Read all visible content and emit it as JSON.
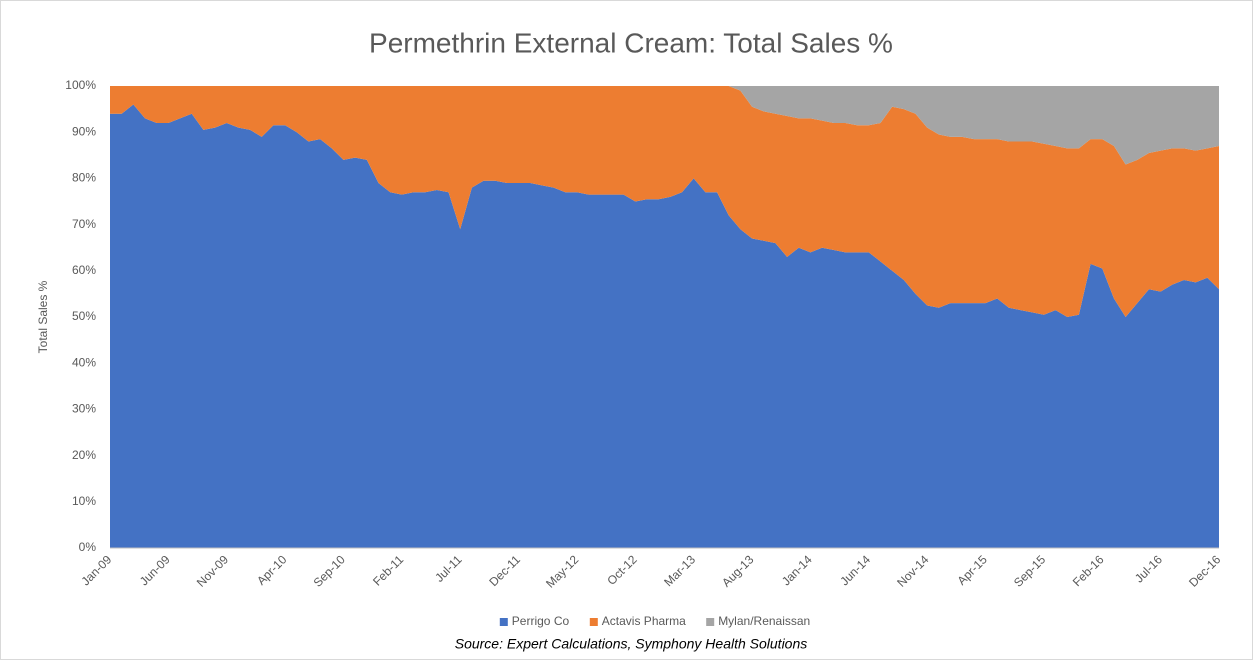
{
  "chart_data": {
    "type": "stacked_area",
    "title": "Permethrin External Cream: Total Sales %",
    "ylabel": "Total Sales %",
    "source": "Source: Expert Calculations, Symphony Health Solutions",
    "legend": "bottom",
    "grid": false,
    "ylim": [
      0,
      100
    ],
    "yticks": [
      {
        "value": 0,
        "label": "0%"
      },
      {
        "value": 10,
        "label": "10%"
      },
      {
        "value": 20,
        "label": "20%"
      },
      {
        "value": 30,
        "label": "30%"
      },
      {
        "value": 40,
        "label": "40%"
      },
      {
        "value": 50,
        "label": "50%"
      },
      {
        "value": 60,
        "label": "60%"
      },
      {
        "value": 70,
        "label": "70%"
      },
      {
        "value": 80,
        "label": "80%"
      },
      {
        "value": 90,
        "label": "90%"
      },
      {
        "value": 100,
        "label": "100%"
      }
    ],
    "categories": [
      "Jan-09",
      null,
      null,
      null,
      null,
      "Jun-09",
      null,
      null,
      null,
      null,
      "Nov-09",
      null,
      null,
      null,
      null,
      "Apr-10",
      null,
      null,
      null,
      null,
      "Sep-10",
      null,
      null,
      null,
      null,
      "Feb-11",
      null,
      null,
      null,
      null,
      "Jul-11",
      null,
      null,
      null,
      null,
      "Dec-11",
      null,
      null,
      null,
      null,
      "May-12",
      null,
      null,
      null,
      null,
      "Oct-12",
      null,
      null,
      null,
      null,
      "Mar-13",
      null,
      null,
      null,
      null,
      "Aug-13",
      null,
      null,
      null,
      null,
      "Jan-14",
      null,
      null,
      null,
      null,
      "Jun-14",
      null,
      null,
      null,
      null,
      "Nov-14",
      null,
      null,
      null,
      null,
      "Apr-15",
      null,
      null,
      null,
      null,
      "Sep-15",
      null,
      null,
      null,
      null,
      "Feb-16",
      null,
      null,
      null,
      null,
      "Jul-16",
      null,
      null,
      null,
      null,
      "Dec-16"
    ],
    "series": [
      {
        "name": "Perrigo Co",
        "color": "#4472c4",
        "values": [
          94,
          94,
          96,
          93,
          92,
          92,
          93,
          94,
          90.5,
          91,
          92,
          91,
          90.5,
          89,
          91.5,
          91.5,
          90,
          88,
          88.5,
          86.5,
          84,
          84.5,
          84,
          79,
          77,
          76.5,
          77,
          77,
          77.5,
          77,
          69,
          78,
          79.5,
          79.5,
          79,
          79,
          79,
          78.5,
          78,
          77,
          77,
          76.5,
          76.5,
          76.5,
          76.5,
          75,
          75.5,
          75.5,
          76,
          77,
          80,
          77,
          77,
          72,
          69,
          67,
          66.5,
          66,
          63,
          65,
          64,
          65,
          64.5,
          64,
          64,
          64,
          62,
          60,
          58,
          55,
          52.5,
          52,
          53,
          53,
          53,
          53,
          54,
          52,
          51.5,
          51,
          50.5,
          51.5,
          50,
          50.5,
          61.5,
          60.5,
          54,
          50,
          53,
          56,
          55.5,
          57,
          58,
          57.5,
          58.5,
          56
        ]
      },
      {
        "name": "Actavis Pharma",
        "color": "#ed7d31",
        "values": [
          6,
          6,
          4,
          7,
          8,
          8,
          7,
          6,
          9.5,
          9,
          8,
          9,
          9.5,
          11,
          8.5,
          8.5,
          10,
          12,
          11.5,
          13.5,
          16,
          15.5,
          16,
          21,
          23,
          23.5,
          23,
          23,
          22.5,
          23,
          31,
          22,
          20.5,
          20.5,
          21,
          21,
          21,
          21.5,
          22,
          23,
          23,
          23.5,
          23.5,
          23.5,
          23.5,
          25,
          24.5,
          24.5,
          24,
          23,
          20,
          23,
          23,
          28,
          30,
          28.5,
          28,
          28,
          30.5,
          28,
          29,
          27.5,
          27.5,
          28,
          27.5,
          27.5,
          30,
          35.5,
          37,
          39,
          38.5,
          37.5,
          36,
          36,
          35.5,
          35.5,
          34.5,
          36,
          36.5,
          37,
          37,
          35.5,
          36.5,
          36,
          27,
          28,
          33,
          33,
          31,
          29.5,
          30.5,
          29.5,
          28.5,
          28.5,
          28,
          31
        ]
      },
      {
        "name": "Mylan/Renaissan",
        "color": "#a5a5a5",
        "values": [
          0,
          0,
          0,
          0,
          0,
          0,
          0,
          0,
          0,
          0,
          0,
          0,
          0,
          0,
          0,
          0,
          0,
          0,
          0,
          0,
          0,
          0,
          0,
          0,
          0,
          0,
          0,
          0,
          0,
          0,
          0,
          0,
          0,
          0,
          0,
          0,
          0,
          0,
          0,
          0,
          0,
          0,
          0,
          0,
          0,
          0,
          0,
          0,
          0,
          0,
          0,
          0,
          0,
          0,
          1,
          4.5,
          5.5,
          6,
          6.5,
          7,
          7,
          7.5,
          8,
          8,
          8.5,
          8.5,
          8,
          4.5,
          5,
          6,
          9,
          10.5,
          11,
          11,
          11.5,
          11.5,
          11.5,
          12,
          12,
          12,
          12.5,
          13,
          13.5,
          13.5,
          11.5,
          11.5,
          13,
          17,
          16,
          14.5,
          14,
          13.5,
          13.5,
          14,
          13.5,
          13
        ]
      }
    ]
  }
}
